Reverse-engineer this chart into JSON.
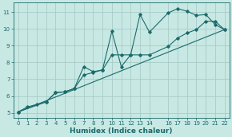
{
  "title": "",
  "xlabel": "Humidex (Indice chaleur)",
  "bg_color": "#c8e8e4",
  "grid_color": "#a8ccc8",
  "line_color": "#1a6b6b",
  "xlim": [
    -0.5,
    22.5
  ],
  "ylim": [
    4.7,
    11.55
  ],
  "xticks": [
    0,
    1,
    2,
    3,
    4,
    5,
    6,
    7,
    8,
    9,
    10,
    11,
    12,
    13,
    14,
    16,
    17,
    18,
    19,
    20,
    21,
    22
  ],
  "yticks": [
    5,
    6,
    7,
    8,
    9,
    10,
    11
  ],
  "line1_x": [
    0,
    1,
    2,
    3,
    4,
    5,
    6,
    7,
    8,
    9,
    10,
    11,
    12,
    13,
    14,
    16,
    17,
    18,
    19,
    20,
    21,
    22
  ],
  "line1_y": [
    5.05,
    5.35,
    5.5,
    5.65,
    6.2,
    6.25,
    6.45,
    7.75,
    7.45,
    7.55,
    9.85,
    7.75,
    8.45,
    10.85,
    9.8,
    10.95,
    11.2,
    11.05,
    10.8,
    10.85,
    10.25,
    9.95
  ],
  "line2_x": [
    0,
    3,
    4,
    5,
    6,
    7,
    8,
    9,
    10,
    11,
    12,
    13,
    14,
    16,
    17,
    18,
    19,
    20,
    21,
    22
  ],
  "line2_y": [
    5.05,
    5.65,
    6.2,
    6.25,
    6.45,
    7.25,
    7.4,
    7.55,
    8.45,
    8.45,
    8.45,
    8.45,
    8.45,
    8.95,
    9.45,
    9.75,
    9.95,
    10.45,
    10.45,
    9.95
  ],
  "line3_x": [
    0,
    22
  ],
  "line3_y": [
    5.05,
    9.95
  ]
}
